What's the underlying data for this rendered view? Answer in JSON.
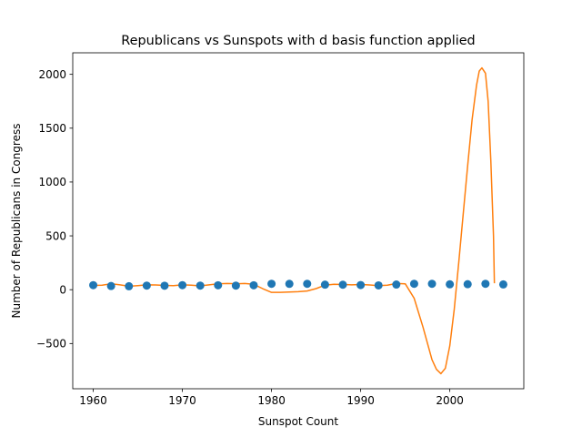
{
  "chart_data": {
    "type": "scatter",
    "title": "Republicans vs Sunspots with d basis function applied",
    "xlabel": "Sunspot Count",
    "ylabel": "Number of Republicans in Congress",
    "xlim": [
      1957.7,
      2008.3
    ],
    "ylim": [
      -920,
      2200
    ],
    "xticks": [
      1960,
      1970,
      1980,
      1990,
      2000
    ],
    "yticks": [
      -500,
      0,
      500,
      1000,
      1500,
      2000
    ],
    "grid": false,
    "series": [
      {
        "kind": "scatter",
        "color": "#1f77b4",
        "x": [
          1960,
          1962,
          1964,
          1966,
          1968,
          1970,
          1972,
          1974,
          1976,
          1978,
          1980,
          1982,
          1984,
          1986,
          1988,
          1990,
          1992,
          1994,
          1996,
          1998,
          2000,
          2002,
          2004,
          2006
        ],
        "y": [
          42,
          34,
          32,
          38,
          37,
          42,
          38,
          41,
          38,
          41,
          55,
          54,
          55,
          47,
          46,
          43,
          40,
          48,
          55,
          55,
          50,
          51,
          55,
          49
        ]
      },
      {
        "kind": "line",
        "color": "#ff7f0e",
        "x": [
          1960,
          1961,
          1962,
          1963,
          1964,
          1965,
          1966,
          1967,
          1968,
          1969,
          1970,
          1971,
          1972,
          1973,
          1974,
          1975,
          1976,
          1977,
          1978,
          1979,
          1980,
          1981,
          1982,
          1983,
          1984,
          1985,
          1986,
          1987,
          1988,
          1989,
          1990,
          1991,
          1992,
          1993,
          1994,
          1995,
          1996,
          1997,
          1998,
          1998.5,
          1999,
          1999.5,
          2000,
          2000.5,
          2001,
          2001.5,
          2002,
          2002.5,
          2003,
          2003.3,
          2003.6,
          2004,
          2004.3,
          2004.6,
          2004.9,
          2005
        ],
        "y": [
          40,
          42,
          55,
          45,
          32,
          38,
          45,
          44,
          40,
          38,
          45,
          42,
          35,
          45,
          55,
          58,
          55,
          58,
          50,
          10,
          -25,
          -25,
          -22,
          -18,
          -12,
          10,
          42,
          50,
          48,
          45,
          48,
          44,
          38,
          42,
          58,
          55,
          -80,
          -350,
          -650,
          -740,
          -780,
          -730,
          -520,
          -180,
          250,
          700,
          1150,
          1580,
          1900,
          2030,
          2060,
          2010,
          1750,
          1200,
          500,
          60
        ]
      }
    ]
  }
}
